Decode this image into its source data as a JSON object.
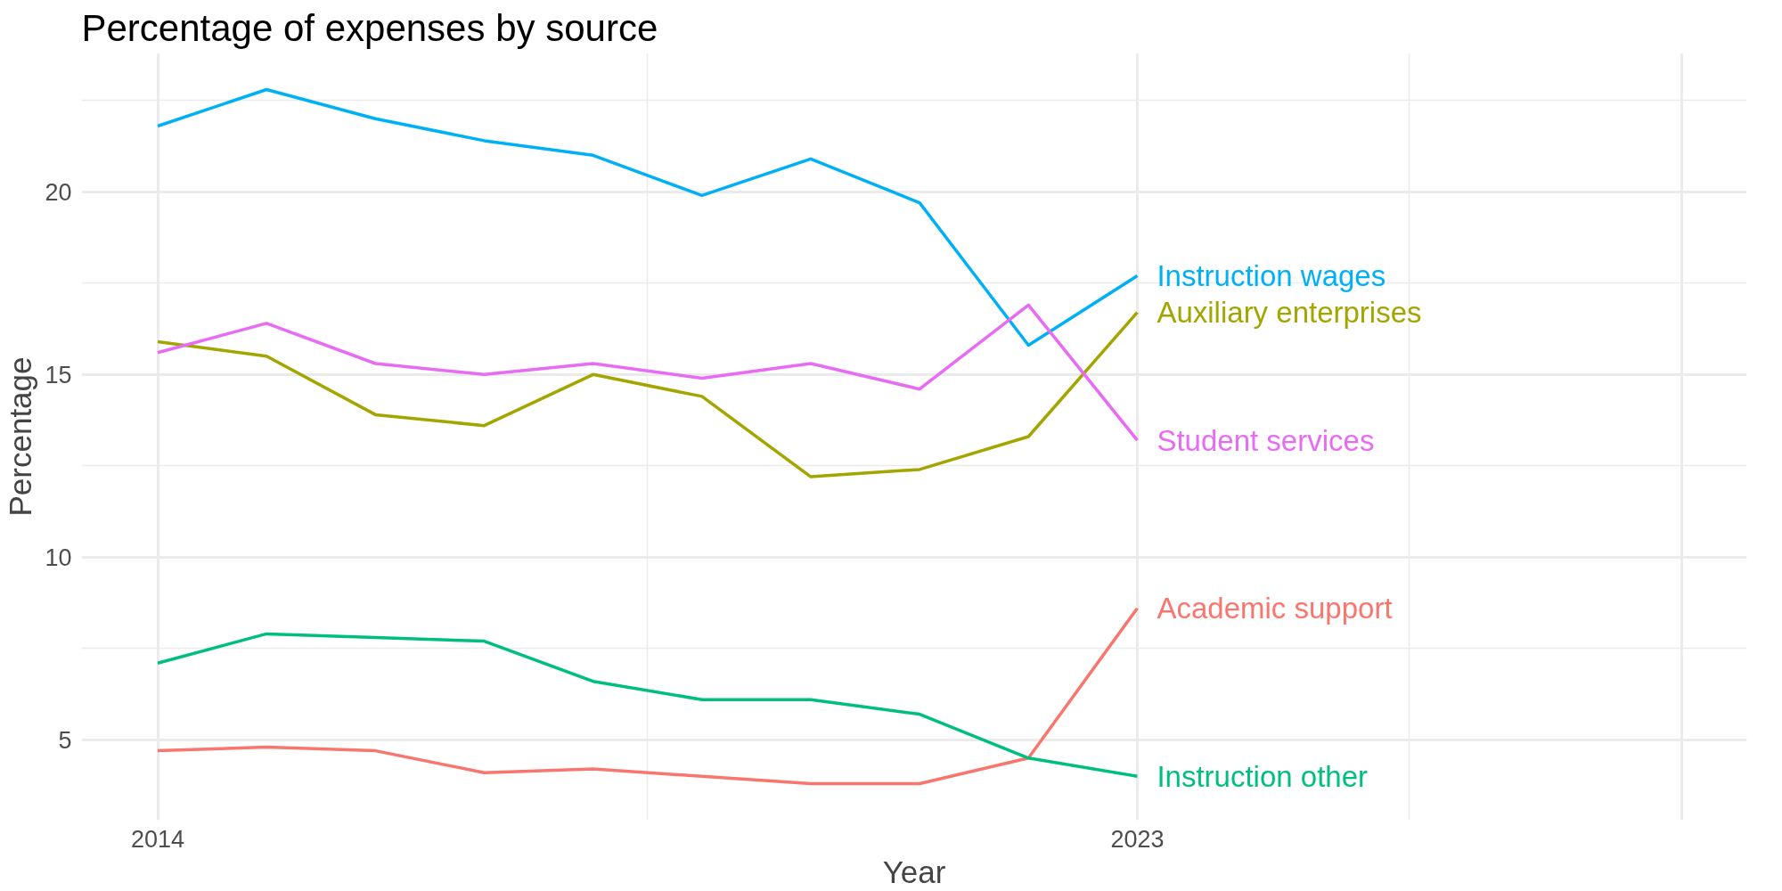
{
  "chart_data": {
    "type": "line",
    "title": "Percentage of expenses by source",
    "xlabel": "Year",
    "ylabel": "Percentage",
    "x": [
      2014,
      2015,
      2016,
      2017,
      2018,
      2019,
      2020,
      2021,
      2022,
      2023
    ],
    "series": [
      {
        "name": "Academic support",
        "color": "#f8766d",
        "values": [
          4.7,
          4.8,
          4.7,
          4.1,
          4.2,
          4.0,
          3.8,
          3.8,
          4.5,
          8.6
        ]
      },
      {
        "name": "Auxiliary enterprises",
        "color": "#a3a500",
        "values": [
          15.9,
          15.5,
          13.9,
          13.6,
          15.0,
          14.4,
          12.2,
          12.4,
          13.3,
          16.7
        ]
      },
      {
        "name": "Instruction other",
        "color": "#00bf7d",
        "values": [
          7.1,
          7.9,
          7.8,
          7.7,
          6.6,
          6.1,
          6.1,
          5.7,
          4.5,
          4.0
        ]
      },
      {
        "name": "Instruction wages",
        "color": "#00b0f6",
        "values": [
          21.8,
          22.8,
          22.0,
          21.4,
          21.0,
          19.9,
          20.9,
          19.7,
          15.8,
          17.7
        ]
      },
      {
        "name": "Student services",
        "color": "#e76bf3",
        "values": [
          15.6,
          16.4,
          15.3,
          15.0,
          15.3,
          14.9,
          15.3,
          14.6,
          16.9,
          13.2
        ]
      }
    ],
    "xlim": [
      2013.3,
      2028.6
    ],
    "xticks": [
      2014,
      2023,
      {
        "value": 2028,
        "label": null
      }
    ],
    "ylim": [
      2.8,
      23.8
    ],
    "yticks": [
      5,
      10,
      15,
      20
    ],
    "grid": true,
    "line_style": "solid"
  }
}
